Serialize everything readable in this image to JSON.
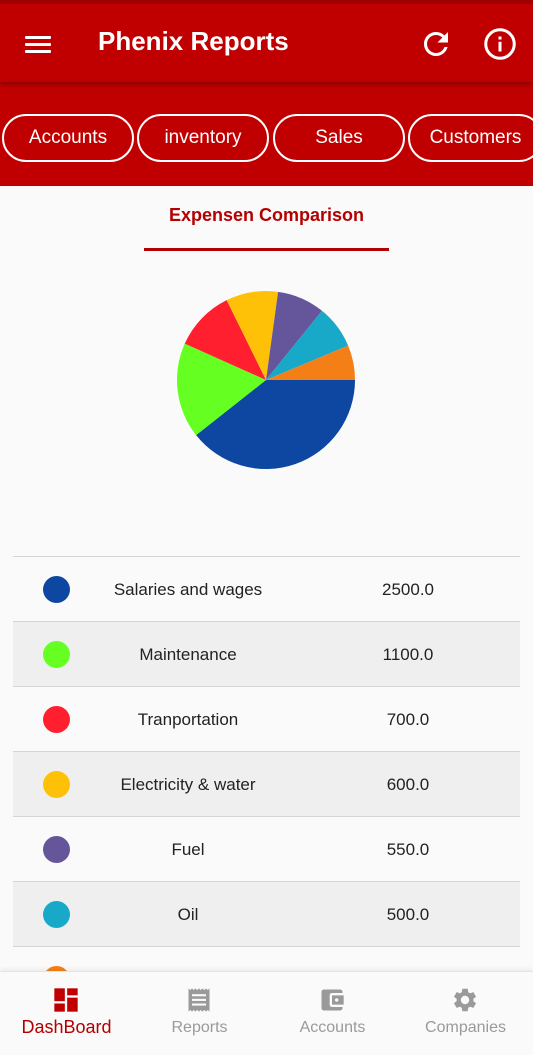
{
  "header": {
    "title": "Phenix Reports",
    "menu_icon": "hamburger-menu-icon",
    "refresh_icon": "refresh-icon",
    "info_icon": "info-icon"
  },
  "tabs": [
    {
      "label": "Accounts"
    },
    {
      "label": "inventory"
    },
    {
      "label": "Sales"
    },
    {
      "label": "Customers"
    }
  ],
  "section": {
    "title": "Expensen Comparison"
  },
  "colors": {
    "primary": "#c00000",
    "accent_text": "#b40000",
    "inactive": "#9a9a9a"
  },
  "chart_data": {
    "type": "pie",
    "categories": [
      "Salaries and wages",
      "Maintenance",
      "Tranportation",
      "Electricity & water",
      "Fuel",
      "Oil",
      ""
    ],
    "values": [
      2500.0,
      1100.0,
      700.0,
      600.0,
      550.0,
      500.0,
      400.0
    ],
    "colors": [
      "#0d47a1",
      "#66ff22",
      "#ff1f2f",
      "#ffc107",
      "#65559b",
      "#18a9c9",
      "#f57f17"
    ]
  },
  "legend": [
    {
      "name": "Salaries and wages",
      "value": "2500.0",
      "color": "#0d47a1"
    },
    {
      "name": "Maintenance",
      "value": "1100.0",
      "color": "#66ff22"
    },
    {
      "name": "Tranportation",
      "value": "700.0",
      "color": "#ff1f2f"
    },
    {
      "name": "Electricity & water",
      "value": "600.0",
      "color": "#ffc107"
    },
    {
      "name": "Fuel",
      "value": "550.0",
      "color": "#65559b"
    },
    {
      "name": "Oil",
      "value": "500.0",
      "color": "#18a9c9"
    },
    {
      "name": "",
      "value": "",
      "color": "#f57f17"
    }
  ],
  "bottom_nav": [
    {
      "label": "DashBoard",
      "icon": "dashboard-icon",
      "active": true
    },
    {
      "label": "Reports",
      "icon": "receipt-icon",
      "active": false
    },
    {
      "label": "Accounts",
      "icon": "wallet-icon",
      "active": false
    },
    {
      "label": "Companies",
      "icon": "gear-icon",
      "active": false
    }
  ]
}
